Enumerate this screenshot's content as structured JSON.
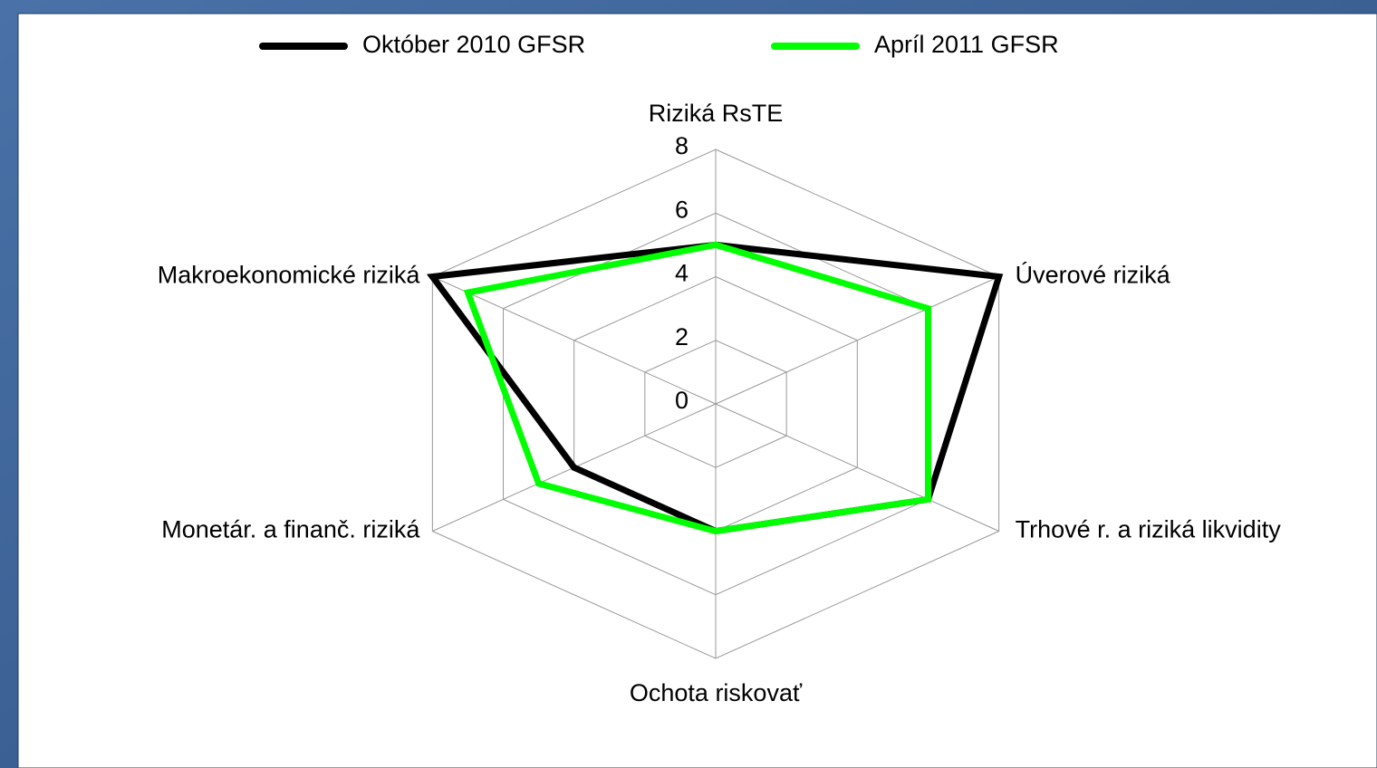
{
  "chart_data": {
    "type": "radar",
    "categories": [
      "Riziká RsTE",
      "Úverové riziká",
      "Trhové r. a riziká likvidity",
      "Ochota riskovať",
      "Monetár. a finanč. riziká",
      "Makroekonomické riziká"
    ],
    "series": [
      {
        "name": "Október 2010 GFSR",
        "color": "#000000",
        "values": [
          5,
          8,
          6,
          4,
          4,
          8
        ]
      },
      {
        "name": "Apríl 2011 GFSR",
        "color": "#00ff00",
        "values": [
          5,
          6,
          6,
          4,
          5,
          7
        ]
      }
    ],
    "ylim": [
      0,
      8
    ],
    "yticks": [
      0,
      2,
      4,
      6,
      8
    ],
    "grid": true,
    "legend": "top"
  }
}
